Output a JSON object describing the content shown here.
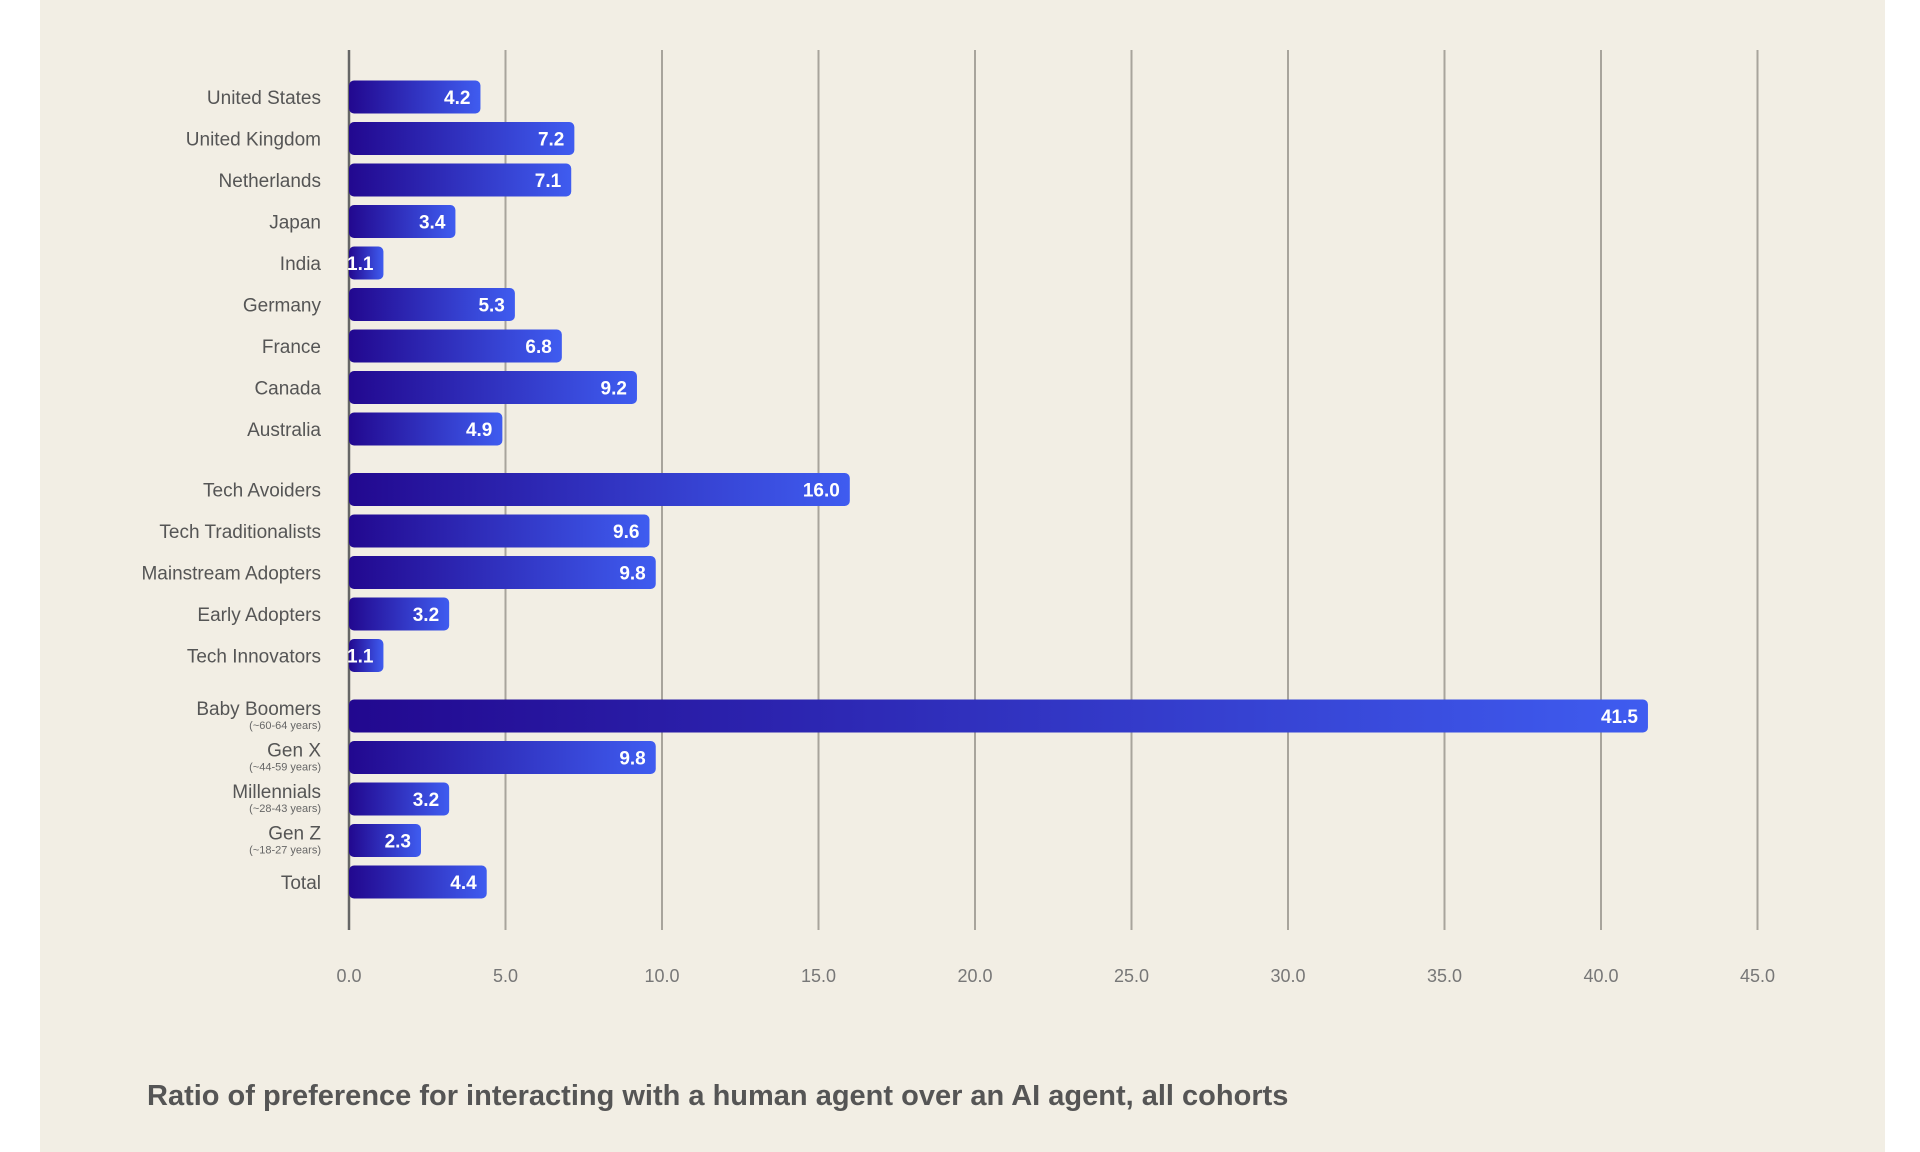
{
  "chart_data": {
    "type": "bar",
    "orientation": "horizontal",
    "title": "Ratio of preference for interacting with a human agent over an AI agent, all cohorts",
    "xlim": [
      0,
      45
    ],
    "xticks": [
      "0.0",
      "5.0",
      "10.0",
      "15.0",
      "20.0",
      "25.0",
      "30.0",
      "35.0",
      "40.0",
      "45.0"
    ],
    "grid": "vertical",
    "bar_gradient": [
      "#22088f",
      "#3f5cf0"
    ],
    "groups": [
      {
        "bars": [
          {
            "label": "United States",
            "value": 4.2,
            "value_label": "4.2"
          },
          {
            "label": "United Kingdom",
            "value": 7.2,
            "value_label": "7.2"
          },
          {
            "label": "Netherlands",
            "value": 7.1,
            "value_label": "7.1"
          },
          {
            "label": "Japan",
            "value": 3.4,
            "value_label": "3.4"
          },
          {
            "label": "India",
            "value": 1.1,
            "value_label": "1.1"
          },
          {
            "label": "Germany",
            "value": 5.3,
            "value_label": "5.3"
          },
          {
            "label": "France",
            "value": 6.8,
            "value_label": "6.8"
          },
          {
            "label": "Canada",
            "value": 9.2,
            "value_label": "9.2"
          },
          {
            "label": "Australia",
            "value": 4.9,
            "value_label": "4.9"
          }
        ]
      },
      {
        "bars": [
          {
            "label": "Tech Avoiders",
            "value": 16.0,
            "value_label": "16.0"
          },
          {
            "label": "Tech Traditionalists",
            "value": 9.6,
            "value_label": "9.6"
          },
          {
            "label": "Mainstream Adopters",
            "value": 9.8,
            "value_label": "9.8"
          },
          {
            "label": "Early Adopters",
            "value": 3.2,
            "value_label": "3.2"
          },
          {
            "label": "Tech Innovators",
            "value": 1.1,
            "value_label": "1.1"
          }
        ]
      },
      {
        "bars": [
          {
            "label": "Baby Boomers",
            "sublabel": "(~60-64 years)",
            "value": 41.5,
            "value_label": "41.5"
          },
          {
            "label": "Gen X",
            "sublabel": "(~44-59 years)",
            "value": 9.8,
            "value_label": "9.8"
          },
          {
            "label": "Millennials",
            "sublabel": "(~28-43 years)",
            "value": 3.2,
            "value_label": "3.2"
          },
          {
            "label": "Gen Z",
            "sublabel": "(~18-27 years)",
            "value": 2.3,
            "value_label": "2.3"
          },
          {
            "label": "Total",
            "value": 4.4,
            "value_label": "4.4"
          }
        ]
      }
    ]
  }
}
